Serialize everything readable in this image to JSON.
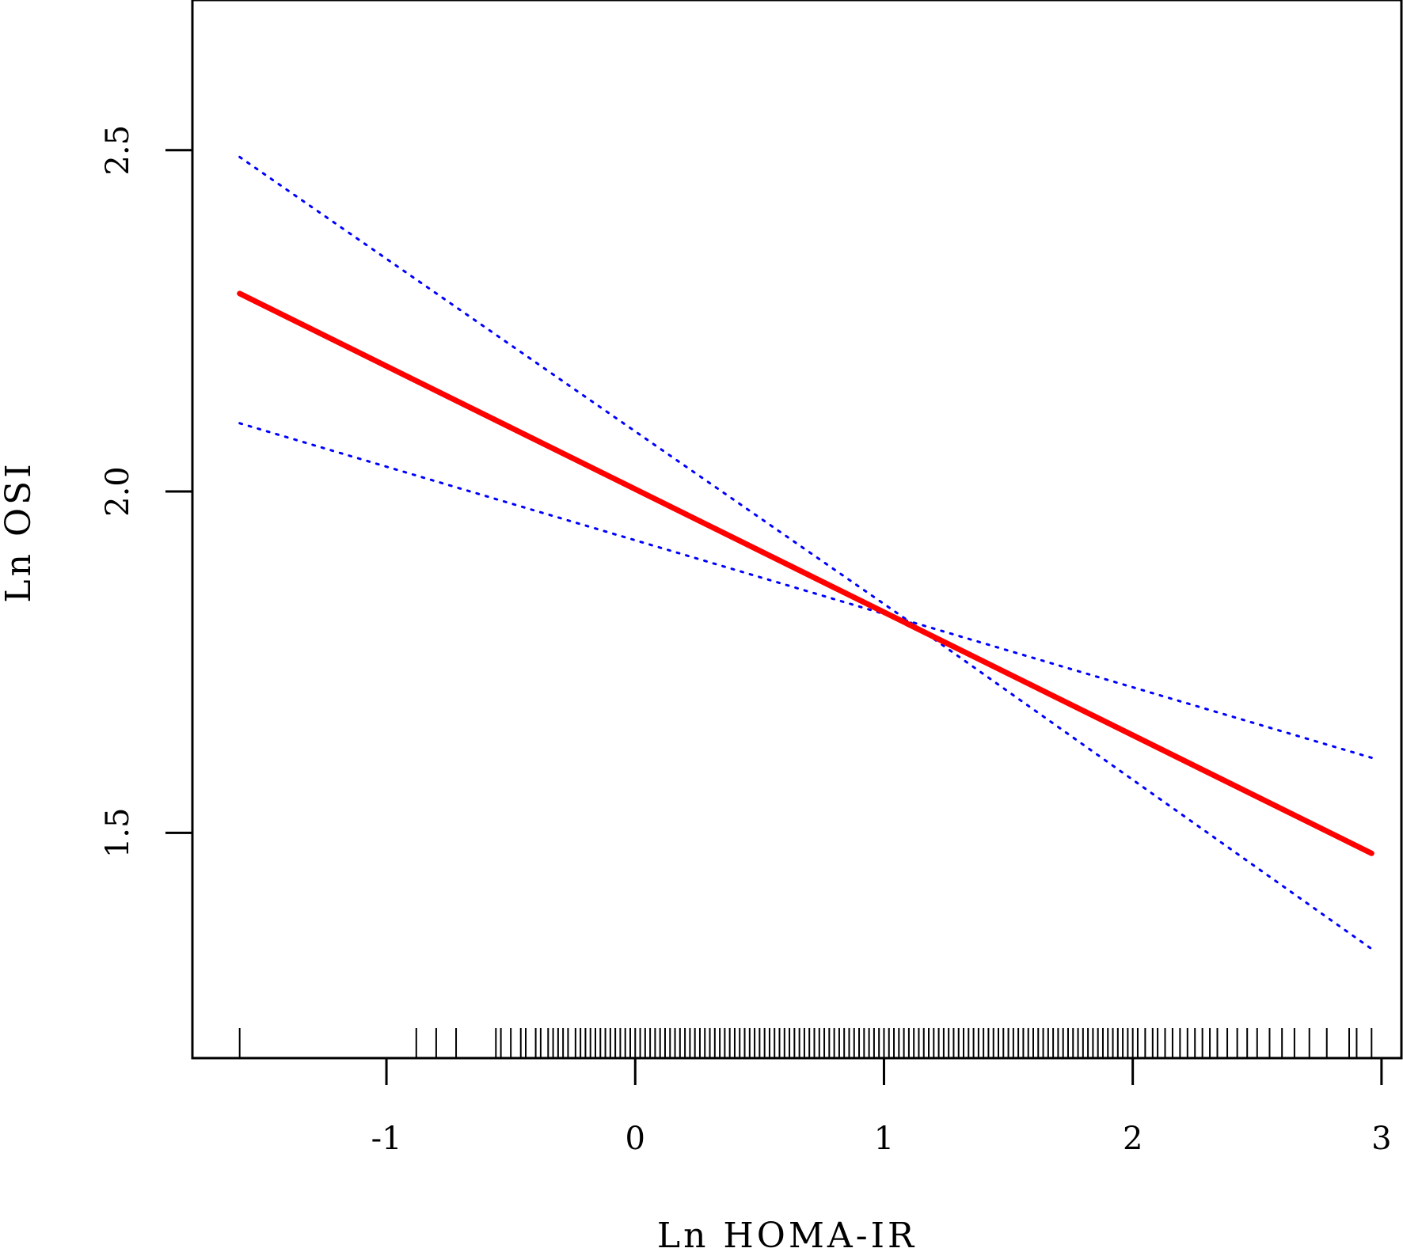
{
  "chart_data": {
    "type": "line",
    "xlabel": "Ln HOMA-IR",
    "ylabel": "Ln OSI",
    "xlim": [
      -1.78,
      3.08
    ],
    "ylim": [
      1.17,
      2.72
    ],
    "x_ticks": [
      -1,
      0,
      1,
      2,
      3
    ],
    "x_tick_labels": [
      "-1",
      "0",
      "1",
      "2",
      "3"
    ],
    "y_ticks": [
      1.5,
      2.0,
      2.5
    ],
    "y_tick_labels": [
      "1.5",
      "2.0",
      "2.5"
    ],
    "grid": false,
    "series": [
      {
        "role": "fit",
        "style": "solid",
        "color": "#ff0000",
        "x": [
          -1.59,
          2.96
        ],
        "y": [
          2.29,
          1.47
        ]
      },
      {
        "role": "upper-ci",
        "style": "dotted",
        "color": "#0000ff",
        "x": [
          -1.59,
          1.1,
          2.96
        ],
        "y": [
          2.49,
          1.81,
          1.33
        ]
      },
      {
        "role": "lower-ci",
        "style": "dotted",
        "color": "#0000ff",
        "x": [
          -1.59,
          1.1,
          2.96
        ],
        "y": [
          2.1,
          1.81,
          1.61
        ]
      }
    ],
    "rug_x": [
      -1.59,
      -0.88,
      -0.8,
      -0.72,
      -0.56,
      -0.54,
      -0.5,
      -0.46,
      -0.44,
      -0.4,
      -0.38,
      -0.35,
      -0.33,
      -0.31,
      -0.29,
      -0.27,
      -0.24,
      -0.22,
      -0.2,
      -0.18,
      -0.16,
      -0.14,
      -0.12,
      -0.1,
      -0.08,
      -0.06,
      -0.04,
      -0.02,
      0.0,
      0.02,
      0.04,
      0.06,
      0.08,
      0.1,
      0.12,
      0.14,
      0.16,
      0.18,
      0.2,
      0.22,
      0.24,
      0.26,
      0.28,
      0.3,
      0.32,
      0.34,
      0.36,
      0.38,
      0.4,
      0.42,
      0.44,
      0.46,
      0.48,
      0.5,
      0.52,
      0.54,
      0.56,
      0.58,
      0.6,
      0.62,
      0.64,
      0.66,
      0.68,
      0.7,
      0.72,
      0.74,
      0.76,
      0.78,
      0.8,
      0.82,
      0.84,
      0.86,
      0.88,
      0.9,
      0.92,
      0.94,
      0.96,
      0.98,
      1.0,
      1.02,
      1.04,
      1.06,
      1.08,
      1.1,
      1.12,
      1.14,
      1.16,
      1.18,
      1.2,
      1.22,
      1.24,
      1.26,
      1.28,
      1.3,
      1.32,
      1.34,
      1.36,
      1.38,
      1.4,
      1.42,
      1.44,
      1.46,
      1.48,
      1.5,
      1.52,
      1.54,
      1.56,
      1.58,
      1.6,
      1.62,
      1.64,
      1.66,
      1.68,
      1.7,
      1.72,
      1.74,
      1.76,
      1.78,
      1.8,
      1.82,
      1.84,
      1.86,
      1.88,
      1.9,
      1.92,
      1.94,
      1.96,
      1.98,
      2.0,
      2.02,
      2.05,
      2.08,
      2.1,
      2.13,
      2.16,
      2.19,
      2.22,
      2.25,
      2.28,
      2.31,
      2.34,
      2.38,
      2.42,
      2.46,
      2.5,
      2.55,
      2.6,
      2.65,
      2.71,
      2.78,
      2.87,
      2.9,
      2.96
    ]
  }
}
